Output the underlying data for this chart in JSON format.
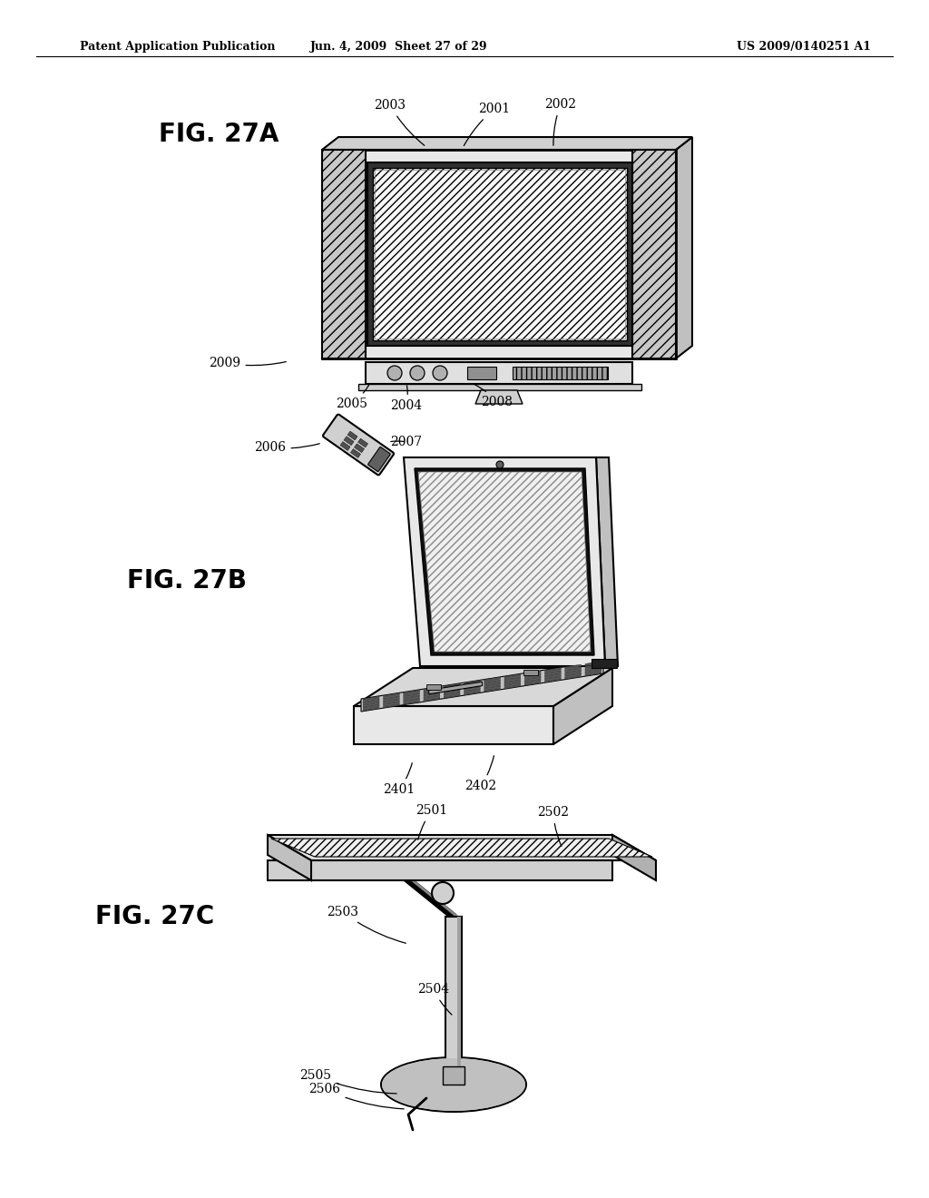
{
  "header_left": "Patent Application Publication",
  "header_mid": "Jun. 4, 2009  Sheet 27 of 29",
  "header_right": "US 2009/0140251 A1",
  "fig27a_label": "FIG. 27A",
  "fig27b_label": "FIG. 27B",
  "fig27c_label": "FIG. 27C",
  "bg_color": "#ffffff",
  "line_color": "#000000"
}
